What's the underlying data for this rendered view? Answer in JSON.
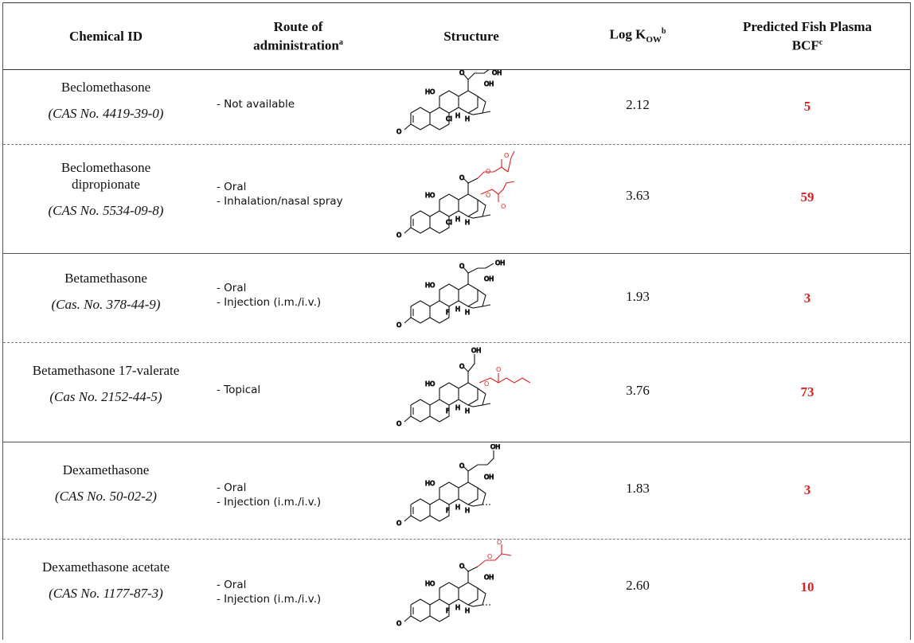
{
  "header": {
    "col1": "Chemical ID",
    "col2_line1": "Route of",
    "col2_line2": "administration",
    "col2_sup": "a",
    "col3": "Structure",
    "col4_main": "Log K",
    "col4_sub": "OW",
    "col4_sup": "b",
    "col5_line1": "Predicted Fish Plasma",
    "col5_line2": "BCF",
    "col5_sup": "c"
  },
  "rows": [
    {
      "name": "Beclomethasone",
      "name2": "",
      "cas": "(CAS No. 4419-39-0)",
      "routes": [
        "- Not available"
      ],
      "halogen": "Cl",
      "log_kow": "2.12",
      "bcf": "5"
    },
    {
      "name": "Beclomethasone",
      "name2": "dipropionate",
      "cas": "(CAS No. 5534-09-8)",
      "routes": [
        "- Oral",
        "- Inhalation/nasal spray"
      ],
      "halogen": "Cl",
      "log_kow": "3.63",
      "bcf": "59"
    },
    {
      "name": "Betamethasone",
      "name2": "",
      "cas": "(Cas. No. 378-44-9)",
      "routes": [
        "- Oral",
        "- Injection (i.m./i.v.)"
      ],
      "halogen": "F",
      "log_kow": "1.93",
      "bcf": "3"
    },
    {
      "name": "Betamethasone 17-valerate",
      "name2": "",
      "cas": "(Cas No. 2152-44-5)",
      "routes": [
        "- Topical"
      ],
      "halogen": "F",
      "log_kow": "3.76",
      "bcf": "73"
    },
    {
      "name": "Dexamethasone",
      "name2": "",
      "cas": "(CAS No. 50-02-2)",
      "routes": [
        "- Oral",
        "- Injection (i.m./i.v.)"
      ],
      "halogen": "F",
      "log_kow": "1.83",
      "bcf": "3"
    },
    {
      "name": "Dexamethasone acetate",
      "name2": "",
      "cas": "(CAS No. 1177-87-3)",
      "routes": [
        "- Oral",
        "- Injection (i.m./i.v.)"
      ],
      "halogen": "F",
      "log_kow": "2.60",
      "bcf": "10"
    }
  ],
  "structure_labels": {
    "ho": "HO",
    "oh": "OH",
    "o": "O",
    "h": "H"
  },
  "colors": {
    "bcf": "#e02020",
    "ester": "#e02020"
  }
}
